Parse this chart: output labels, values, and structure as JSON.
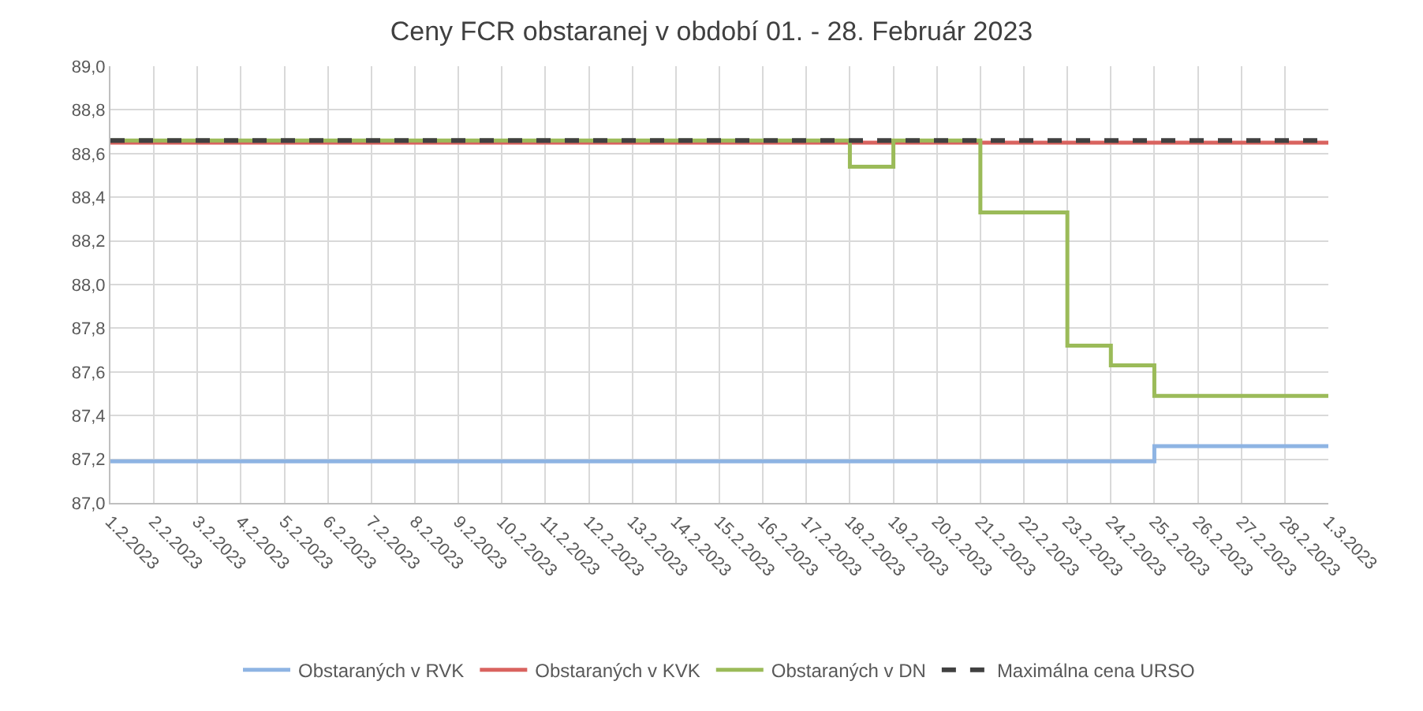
{
  "chart_data": {
    "type": "step",
    "title": "Ceny FCR obstaranej v období 01. - 28. Február 2023",
    "categories": [
      "1.2.2023",
      "2.2.2023",
      "3.2.2023",
      "4.2.2023",
      "5.2.2023",
      "6.2.2023",
      "7.2.2023",
      "8.2.2023",
      "9.2.2023",
      "10.2.2023",
      "11.2.2023",
      "12.2.2023",
      "13.2.2023",
      "14.2.2023",
      "15.2.2023",
      "16.2.2023",
      "17.2.2023",
      "18.2.2023",
      "19.2.2023",
      "20.2.2023",
      "21.2.2023",
      "22.2.2023",
      "23.2.2023",
      "24.2.2023",
      "25.2.2023",
      "26.2.2023",
      "27.2.2023",
      "28.2.2023",
      "1.3.2023"
    ],
    "series": [
      {
        "name": "Obstaraných v RVK",
        "color": "#8eb4e3",
        "values": [
          87.19,
          87.19,
          87.19,
          87.19,
          87.19,
          87.19,
          87.19,
          87.19,
          87.19,
          87.19,
          87.19,
          87.19,
          87.19,
          87.19,
          87.19,
          87.19,
          87.19,
          87.19,
          87.19,
          87.19,
          87.19,
          87.19,
          87.19,
          87.19,
          87.26,
          87.26,
          87.26,
          87.26,
          87.26
        ]
      },
      {
        "name": "Obstaraných v KVK",
        "color": "#d9635f",
        "values": [
          88.65,
          88.65,
          88.65,
          88.65,
          88.65,
          88.65,
          88.65,
          88.65,
          88.65,
          88.65,
          88.65,
          88.65,
          88.65,
          88.65,
          88.65,
          88.65,
          88.65,
          88.65,
          88.65,
          88.65,
          88.65,
          88.65,
          88.65,
          88.65,
          88.65,
          88.65,
          88.65,
          88.65,
          88.65
        ]
      },
      {
        "name": "Obstaraných v DN",
        "color": "#9bbb59",
        "values": [
          88.66,
          88.66,
          88.66,
          88.66,
          88.66,
          88.66,
          88.66,
          88.66,
          88.66,
          88.66,
          88.66,
          88.66,
          88.66,
          88.66,
          88.66,
          88.66,
          88.66,
          88.54,
          88.66,
          88.66,
          88.33,
          88.33,
          87.72,
          87.63,
          87.49,
          87.49,
          87.49,
          87.49,
          87.49
        ]
      },
      {
        "name": "Maximálna cena URSO",
        "color": "#404040",
        "line_style": "dashed",
        "values": [
          88.66,
          88.66,
          88.66,
          88.66,
          88.66,
          88.66,
          88.66,
          88.66,
          88.66,
          88.66,
          88.66,
          88.66,
          88.66,
          88.66,
          88.66,
          88.66,
          88.66,
          88.66,
          88.66,
          88.66,
          88.66,
          88.66,
          88.66,
          88.66,
          88.66,
          88.66,
          88.66,
          88.66,
          88.66
        ]
      }
    ],
    "ylim": [
      87.0,
      89.0
    ],
    "yticks": [
      {
        "value": 87.0,
        "label": "87,0"
      },
      {
        "value": 87.2,
        "label": "87,2"
      },
      {
        "value": 87.4,
        "label": "87,4"
      },
      {
        "value": 87.6,
        "label": "87,6"
      },
      {
        "value": 87.8,
        "label": "87,8"
      },
      {
        "value": 88.0,
        "label": "88,0"
      },
      {
        "value": 88.2,
        "label": "88,2"
      },
      {
        "value": 88.4,
        "label": "88,4"
      },
      {
        "value": 88.6,
        "label": "88,6"
      },
      {
        "value": 88.8,
        "label": "88,8"
      },
      {
        "value": 89.0,
        "label": "89,0"
      }
    ],
    "grid": true,
    "legend": "bottom",
    "marker": "none"
  }
}
